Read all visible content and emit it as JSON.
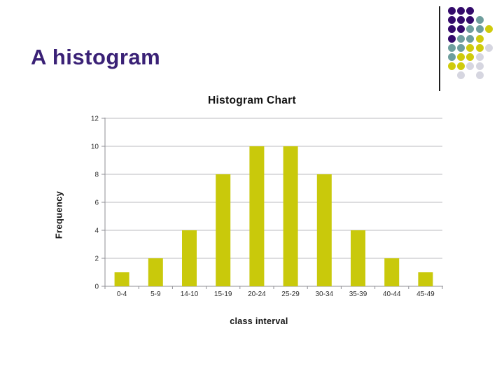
{
  "slide": {
    "title": "A histogram",
    "title_color": "#3A2176",
    "background_color": "#FFFFFF",
    "divider_line_color": "#1F1F1F"
  },
  "decoration": {
    "name": "dot-grid",
    "colors": {
      "purple": "#330A6B",
      "teal": "#6E9E9D",
      "yellow": "#CFCB0C",
      "gray": "#D6D6E0"
    },
    "pattern": [
      [
        "purple",
        "purple",
        "purple",
        null,
        null
      ],
      [
        "purple",
        "purple",
        "purple",
        "teal",
        null
      ],
      [
        "purple",
        "purple",
        "teal",
        "teal",
        "yellow"
      ],
      [
        "purple",
        "teal",
        "teal",
        "yellow",
        null
      ],
      [
        "teal",
        "teal",
        "yellow",
        "yellow",
        "gray"
      ],
      [
        "teal",
        "yellow",
        "yellow",
        "gray",
        null
      ],
      [
        "yellow",
        "yellow",
        "gray",
        "gray",
        null
      ],
      [
        null,
        "gray",
        null,
        "gray",
        null
      ]
    ]
  },
  "chart_data": {
    "type": "bar",
    "title": "Histogram Chart",
    "categories": [
      "0-4",
      "5-9",
      "14-10",
      "15-19",
      "20-24",
      "25-29",
      "30-34",
      "35-39",
      "40-44",
      "45-49"
    ],
    "values": [
      1,
      2,
      4,
      8,
      10,
      10,
      8,
      4,
      2,
      1
    ],
    "xlabel": "class interval",
    "ylabel": "Frequency",
    "ylim": [
      0,
      12
    ],
    "ytick_step": 2,
    "yticks": [
      0,
      2,
      4,
      6,
      8,
      10,
      12
    ],
    "grid": true,
    "legend": "none",
    "bar_color": "#C9C90B",
    "gridline_color": "#BBBBBF",
    "axis_color": "#8F8F96",
    "label_color": "#2E2E2E"
  }
}
